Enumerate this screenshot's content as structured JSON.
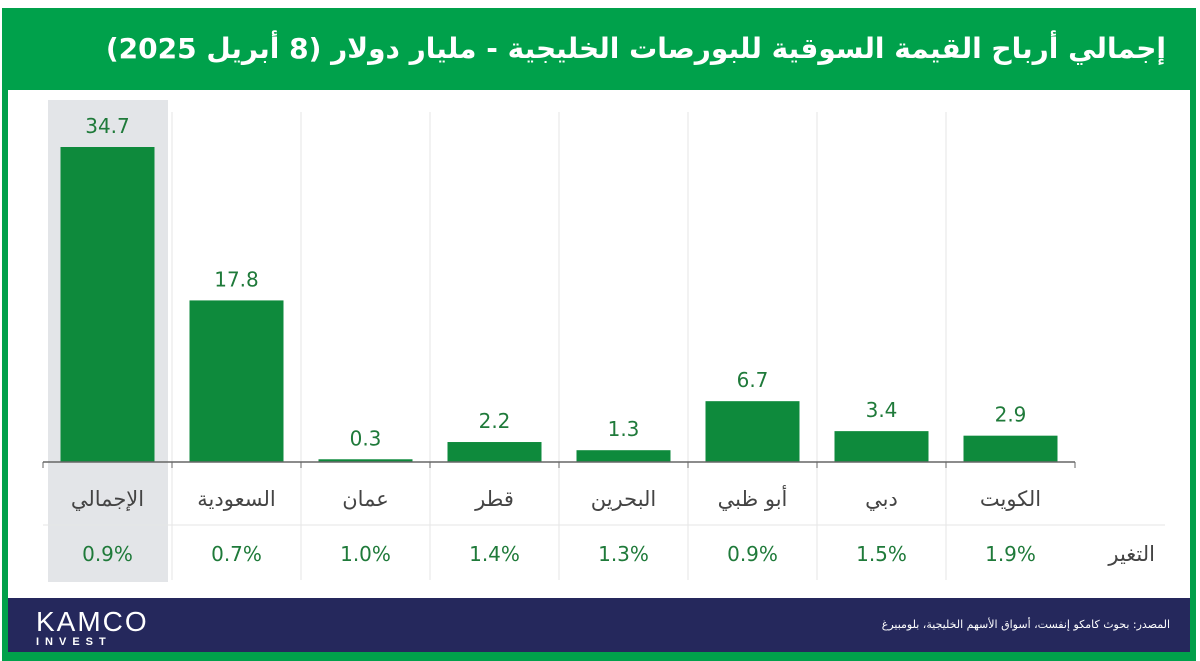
{
  "title": "إجمالي أرباح القيمة السوقية للبورصات الخليجية - مليار دولار (8 أبريل 2025)",
  "footer": {
    "logo_main": "KAMCO",
    "logo_sub": "INVEST",
    "source": "المصدر: بحوث كامكو إنفست، أسواق الأسهم الخليجية، بلومبيرغ"
  },
  "colors": {
    "frame": "#00a14b",
    "bar": "#0e8a3c",
    "footer": "#25285c",
    "highlight": "#e3e5e8",
    "value_text": "#1f7a3a"
  },
  "chart_data": {
    "type": "bar",
    "title": "إجمالي أرباح القيمة السوقية للبورصات الخليجية - مليار دولار (8 أبريل 2025)",
    "categories": [
      "الإجمالي",
      "السعودية",
      "عمان",
      "قطر",
      "البحرين",
      "أبو ظبي",
      "دبي",
      "الكويت"
    ],
    "values": [
      34.7,
      17.8,
      0.3,
      2.2,
      1.3,
      6.7,
      3.4,
      2.9
    ],
    "change_label": "التغير",
    "changes": [
      "0.9%",
      "0.7%",
      "1.0%",
      "1.4%",
      "1.3%",
      "0.9%",
      "1.5%",
      "1.9%"
    ],
    "highlighted_category": "الإجمالي",
    "ylim": [
      0,
      36
    ],
    "grid": false
  }
}
